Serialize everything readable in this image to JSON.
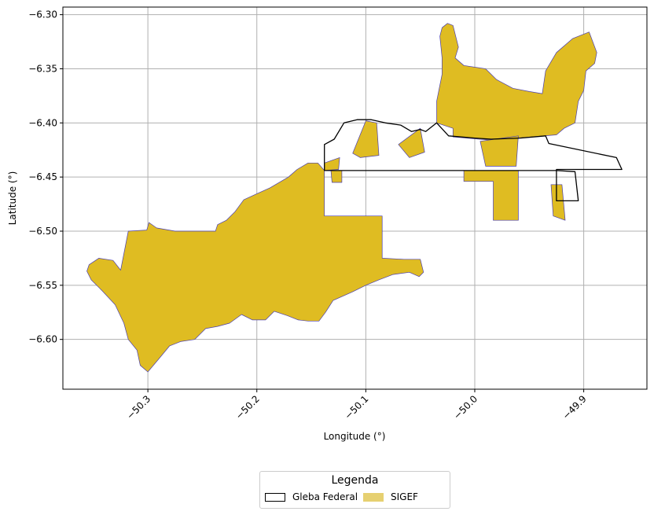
{
  "chart_data": {
    "type": "map",
    "xlabel": "Longitude (°)",
    "ylabel": "Latitude (°)",
    "xlim": [
      -50.378,
      -49.842
    ],
    "ylim": [
      -6.646,
      -6.293
    ],
    "xticks": [
      -50.3,
      -50.2,
      -50.1,
      -50.0,
      -49.9
    ],
    "xtick_labels": [
      "−50.3",
      "−50.2",
      "−50.1",
      "−50.0",
      "−49.9"
    ],
    "yticks": [
      -6.3,
      -6.35,
      -6.4,
      -6.45,
      -6.5,
      -6.55,
      -6.6
    ],
    "ytick_labels": [
      "−6.30",
      "−6.35",
      "−6.40",
      "−6.45",
      "−6.50",
      "−6.55",
      "−6.60"
    ],
    "grid": true,
    "colors": {
      "sigef_fill": "#dfbc22",
      "sigef_edge": "#4b3fb0",
      "gleba_edge": "#000000",
      "grid": "#b0b0b0"
    },
    "layers": [
      {
        "name": "SIGEF",
        "style": "filled",
        "polygons": [
          [
            [
              -50.354,
              -6.531
            ],
            [
              -50.345,
              -6.525
            ],
            [
              -50.332,
              -6.527
            ],
            [
              -50.325,
              -6.536
            ],
            [
              -50.318,
              -6.5
            ],
            [
              -50.301,
              -6.499
            ],
            [
              -50.299,
              -6.492
            ],
            [
              -50.292,
              -6.497
            ],
            [
              -50.275,
              -6.5
            ],
            [
              -50.238,
              -6.5
            ],
            [
              -50.236,
              -6.494
            ],
            [
              -50.228,
              -6.49
            ],
            [
              -50.22,
              -6.482
            ],
            [
              -50.212,
              -6.471
            ],
            [
              -50.199,
              -6.465
            ],
            [
              -50.188,
              -6.46
            ],
            [
              -50.171,
              -6.45
            ],
            [
              -50.163,
              -6.443
            ],
            [
              -50.153,
              -6.437
            ],
            [
              -50.144,
              -6.437
            ],
            [
              -50.138,
              -6.444
            ],
            [
              -50.138,
              -6.486
            ],
            [
              -50.085,
              -6.486
            ],
            [
              -50.085,
              -6.525
            ],
            [
              -50.065,
              -6.526
            ],
            [
              -50.05,
              -6.526
            ],
            [
              -50.047,
              -6.538
            ],
            [
              -50.051,
              -6.542
            ],
            [
              -50.06,
              -6.538
            ],
            [
              -50.075,
              -6.54
            ],
            [
              -50.088,
              -6.545
            ],
            [
              -50.1,
              -6.55
            ],
            [
              -50.112,
              -6.556
            ],
            [
              -50.13,
              -6.564
            ],
            [
              -50.137,
              -6.575
            ],
            [
              -50.143,
              -6.583
            ],
            [
              -50.153,
              -6.583
            ],
            [
              -50.162,
              -6.582
            ],
            [
              -50.172,
              -6.578
            ],
            [
              -50.184,
              -6.574
            ],
            [
              -50.192,
              -6.582
            ],
            [
              -50.204,
              -6.582
            ],
            [
              -50.214,
              -6.577
            ],
            [
              -50.225,
              -6.585
            ],
            [
              -50.236,
              -6.588
            ],
            [
              -50.247,
              -6.59
            ],
            [
              -50.257,
              -6.6
            ],
            [
              -50.27,
              -6.602
            ],
            [
              -50.28,
              -6.606
            ],
            [
              -50.29,
              -6.618
            ],
            [
              -50.3,
              -6.63
            ],
            [
              -50.307,
              -6.624
            ],
            [
              -50.31,
              -6.61
            ],
            [
              -50.318,
              -6.6
            ],
            [
              -50.322,
              -6.585
            ],
            [
              -50.33,
              -6.568
            ],
            [
              -50.342,
              -6.555
            ],
            [
              -50.352,
              -6.545
            ],
            [
              -50.356,
              -6.537
            ]
          ],
          [
            [
              -50.03,
              -6.312
            ],
            [
              -50.025,
              -6.308
            ],
            [
              -50.02,
              -6.31
            ],
            [
              -50.015,
              -6.33
            ],
            [
              -50.018,
              -6.34
            ],
            [
              -50.01,
              -6.347
            ],
            [
              -49.99,
              -6.35
            ],
            [
              -49.98,
              -6.36
            ],
            [
              -49.965,
              -6.368
            ],
            [
              -49.95,
              -6.371
            ],
            [
              -49.938,
              -6.373
            ],
            [
              -49.935,
              -6.352
            ],
            [
              -49.925,
              -6.335
            ],
            [
              -49.91,
              -6.322
            ],
            [
              -49.895,
              -6.316
            ],
            [
              -49.888,
              -6.335
            ],
            [
              -49.89,
              -6.345
            ],
            [
              -49.898,
              -6.352
            ],
            [
              -49.9,
              -6.37
            ],
            [
              -49.905,
              -6.38
            ],
            [
              -49.908,
              -6.4
            ],
            [
              -49.918,
              -6.405
            ],
            [
              -49.925,
              -6.411
            ],
            [
              -49.985,
              -6.416
            ],
            [
              -50.02,
              -6.413
            ],
            [
              -50.02,
              -6.405
            ],
            [
              -50.035,
              -6.4
            ],
            [
              -50.035,
              -6.38
            ],
            [
              -50.03,
              -6.355
            ],
            [
              -50.03,
              -6.34
            ],
            [
              -50.032,
              -6.32
            ]
          ],
          [
            [
              -50.01,
              -6.444
            ],
            [
              -49.96,
              -6.444
            ],
            [
              -49.96,
              -6.49
            ],
            [
              -49.983,
              -6.49
            ],
            [
              -49.983,
              -6.454
            ],
            [
              -50.01,
              -6.454
            ]
          ],
          [
            [
              -49.93,
              -6.457
            ],
            [
              -49.92,
              -6.457
            ],
            [
              -49.917,
              -6.49
            ],
            [
              -49.928,
              -6.486
            ]
          ],
          [
            [
              -50.1,
              -6.398
            ],
            [
              -50.09,
              -6.4
            ],
            [
              -50.088,
              -6.43
            ],
            [
              -50.105,
              -6.432
            ],
            [
              -50.112,
              -6.428
            ]
          ],
          [
            [
              -50.138,
              -6.437
            ],
            [
              -50.124,
              -6.432
            ],
            [
              -50.125,
              -6.443
            ],
            [
              -50.138,
              -6.444
            ]
          ],
          [
            [
              -50.132,
              -6.444
            ],
            [
              -50.122,
              -6.444
            ],
            [
              -50.122,
              -6.455
            ],
            [
              -50.131,
              -6.455
            ]
          ],
          [
            [
              -50.07,
              -6.42
            ],
            [
              -50.05,
              -6.405
            ],
            [
              -50.046,
              -6.427
            ],
            [
              -50.06,
              -6.432
            ]
          ],
          [
            [
              -49.995,
              -6.417
            ],
            [
              -49.96,
              -6.412
            ],
            [
              -49.962,
              -6.44
            ],
            [
              -49.99,
              -6.44
            ]
          ]
        ]
      },
      {
        "name": "Gleba Federal",
        "style": "outline",
        "polygons": [
          [
            [
              -50.129,
              -6.415
            ],
            [
              -50.12,
              -6.4
            ],
            [
              -50.108,
              -6.397
            ],
            [
              -50.095,
              -6.397
            ],
            [
              -50.082,
              -6.4
            ],
            [
              -50.068,
              -6.402
            ],
            [
              -50.058,
              -6.408
            ],
            [
              -50.05,
              -6.406
            ],
            [
              -50.045,
              -6.408
            ],
            [
              -50.035,
              -6.4
            ],
            [
              -50.024,
              -6.412
            ],
            [
              -50.0,
              -6.414
            ],
            [
              -49.985,
              -6.415
            ],
            [
              -49.958,
              -6.414
            ],
            [
              -49.935,
              -6.412
            ],
            [
              -49.932,
              -6.419
            ],
            [
              -49.87,
              -6.432
            ],
            [
              -49.865,
              -6.443
            ],
            [
              -49.92,
              -6.443
            ],
            [
              -49.925,
              -6.443
            ],
            [
              -49.925,
              -6.472
            ],
            [
              -49.905,
              -6.472
            ],
            [
              -49.908,
              -6.445
            ],
            [
              -49.925,
              -6.444
            ],
            [
              -50.138,
              -6.444
            ],
            [
              -50.138,
              -6.42
            ]
          ]
        ]
      }
    ],
    "legend": {
      "title": "Legenda",
      "position": "bottom-center",
      "entries": [
        "Gleba Federal",
        "SIGEF"
      ]
    }
  }
}
